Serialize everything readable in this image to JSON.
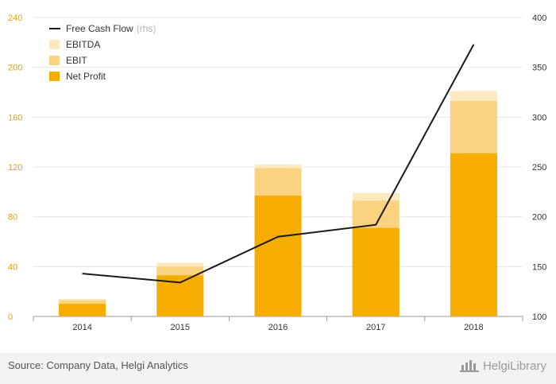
{
  "chart_data": {
    "type": "bar",
    "categories": [
      "2014",
      "2015",
      "2016",
      "2017",
      "2018"
    ],
    "series": [
      {
        "name": "Net Profit",
        "values": [
          10,
          33,
          97,
          71,
          131
        ],
        "color": "#f7ac00",
        "axis": "left"
      },
      {
        "name": "EBIT",
        "values": [
          13,
          40,
          119,
          93,
          173
        ],
        "color": "#fbd27f",
        "axis": "left"
      },
      {
        "name": "EBITDA",
        "values": [
          14,
          43,
          122,
          99,
          181
        ],
        "color": "#fde8bf",
        "axis": "left"
      },
      {
        "name": "Free Cash Flow",
        "type": "line",
        "values": [
          143,
          134,
          180,
          192,
          373
        ],
        "color": "#1a1a1a",
        "axis": "right"
      }
    ],
    "y_left": {
      "min": 0,
      "max": 240,
      "ticks": [
        "0",
        "40",
        "80",
        "120",
        "160",
        "200",
        "240"
      ],
      "tick_color": "#e0a400"
    },
    "y_right": {
      "min": 100,
      "max": 400,
      "ticks": [
        "100",
        "150",
        "200",
        "250",
        "300",
        "350",
        "400"
      ]
    },
    "grid": true,
    "legend_position": "top-left"
  },
  "legend": {
    "items": [
      {
        "label": "Free Cash Flow",
        "suffix": "(rhs)",
        "marker": "line"
      },
      {
        "label": "EBITDA",
        "color": "#fde8bf",
        "marker": "box"
      },
      {
        "label": "EBIT",
        "color": "#fbd27f",
        "marker": "box"
      },
      {
        "label": "Net Profit",
        "color": "#f7ac00",
        "marker": "box"
      }
    ]
  },
  "footer": {
    "source": "Source: Company Data, Helgi Analytics",
    "brand": "HelgiLibrary",
    "brand_icon": "helgi-library-logo-icon"
  }
}
